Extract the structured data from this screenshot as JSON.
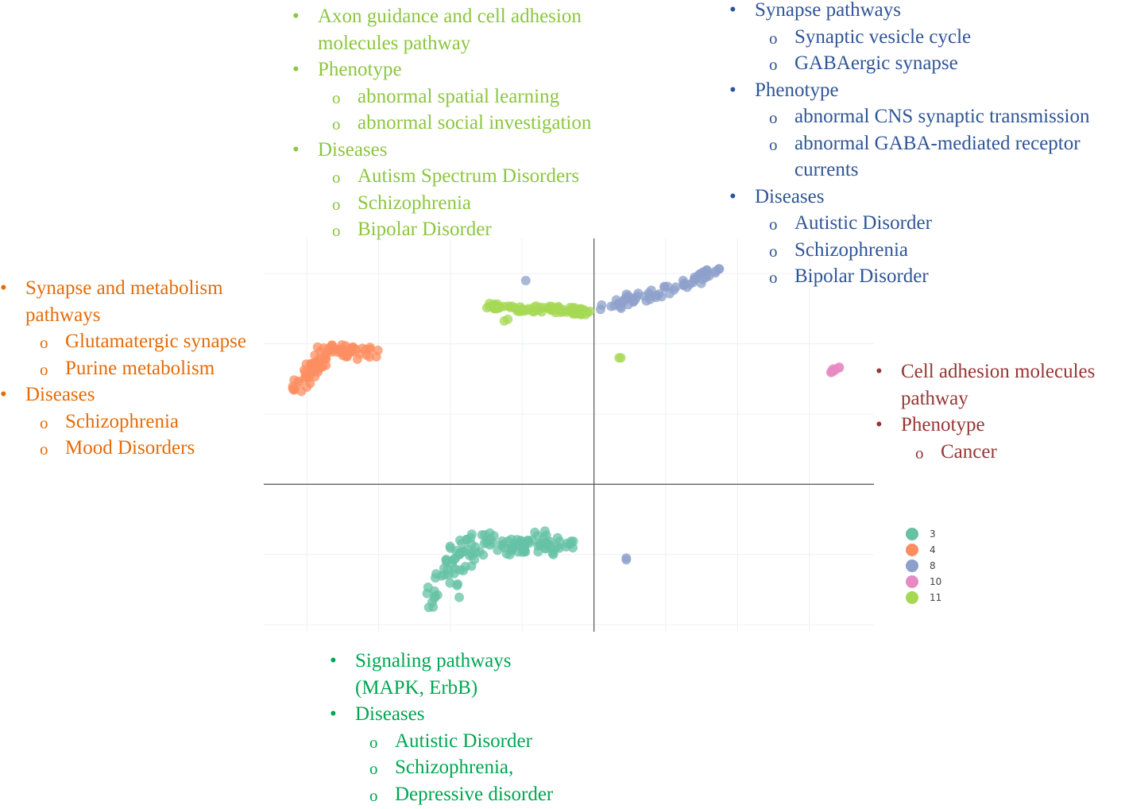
{
  "chart_data": {
    "type": "scatter",
    "grid": true,
    "xlim": [
      -9.2,
      7.8
    ],
    "ylim": [
      -4.2,
      7.0
    ],
    "legend_position": "right",
    "series": [
      {
        "name": "3",
        "color": "#66c2a5"
      },
      {
        "name": "4",
        "color": "#fc8d62"
      },
      {
        "name": "8",
        "color": "#8da0cb"
      },
      {
        "name": "10",
        "color": "#e78ac3"
      },
      {
        "name": "11",
        "color": "#a6d854"
      }
    ]
  },
  "annotations": {
    "green": {
      "color": "#8cc63f",
      "items": [
        {
          "level": 1,
          "text": "Axon guidance and cell adhesion"
        },
        {
          "level": 1,
          "cont": true,
          "text": "molecules pathway"
        },
        {
          "level": 1,
          "text": "Phenotype"
        },
        {
          "level": 2,
          "text": "abnormal spatial learning"
        },
        {
          "level": 2,
          "text": "abnormal social investigation"
        },
        {
          "level": 1,
          "text": "Diseases"
        },
        {
          "level": 2,
          "text": "Autism Spectrum Disorders"
        },
        {
          "level": 2,
          "text": "Schizophrenia"
        },
        {
          "level": 2,
          "text": "Bipolar Disorder"
        }
      ]
    },
    "blue": {
      "color": "#2f5597",
      "items": [
        {
          "level": 1,
          "text": "Synapse pathways"
        },
        {
          "level": 2,
          "text": "Synaptic vesicle cycle"
        },
        {
          "level": 2,
          "text": "GABAergic synapse"
        },
        {
          "level": 1,
          "text": "Phenotype"
        },
        {
          "level": 2,
          "text": "abnormal CNS synaptic transmission"
        },
        {
          "level": 2,
          "text": "abnormal GABA-mediated receptor"
        },
        {
          "level": 2,
          "cont": true,
          "text": "currents"
        },
        {
          "level": 1,
          "text": "Diseases"
        },
        {
          "level": 2,
          "text": "Autistic Disorder"
        },
        {
          "level": 2,
          "text": "Schizophrenia"
        },
        {
          "level": 2,
          "text": "Bipolar Disorder"
        }
      ]
    },
    "orange": {
      "color": "#e36c09",
      "items": [
        {
          "level": 1,
          "text": "Synapse and metabolism"
        },
        {
          "level": 1,
          "cont": true,
          "text": "pathways"
        },
        {
          "level": 2,
          "text": "Glutamatergic synapse"
        },
        {
          "level": 2,
          "text": "Purine metabolism"
        },
        {
          "level": 1,
          "text": "Diseases"
        },
        {
          "level": 2,
          "text": "Schizophrenia"
        },
        {
          "level": 2,
          "text": "Mood Disorders"
        }
      ]
    },
    "red": {
      "color": "#953735",
      "items": [
        {
          "level": 1,
          "text": "Cell adhesion molecules"
        },
        {
          "level": 1,
          "cont": true,
          "text": "pathway"
        },
        {
          "level": 1,
          "text": "Phenotype"
        },
        {
          "level": 2,
          "text": "Cancer"
        }
      ]
    },
    "teal": {
      "color": "#00a651",
      "items": [
        {
          "level": 1,
          "text": "Signaling pathways"
        },
        {
          "level": 1,
          "cont": true,
          "text": "(MAPK, ErbB)"
        },
        {
          "level": 1,
          "text": "Diseases"
        },
        {
          "level": 2,
          "text": "Autistic Disorder"
        },
        {
          "level": 2,
          "text": "Schizophrenia,"
        },
        {
          "level": 2,
          "text": "Depressive disorder"
        }
      ]
    }
  }
}
